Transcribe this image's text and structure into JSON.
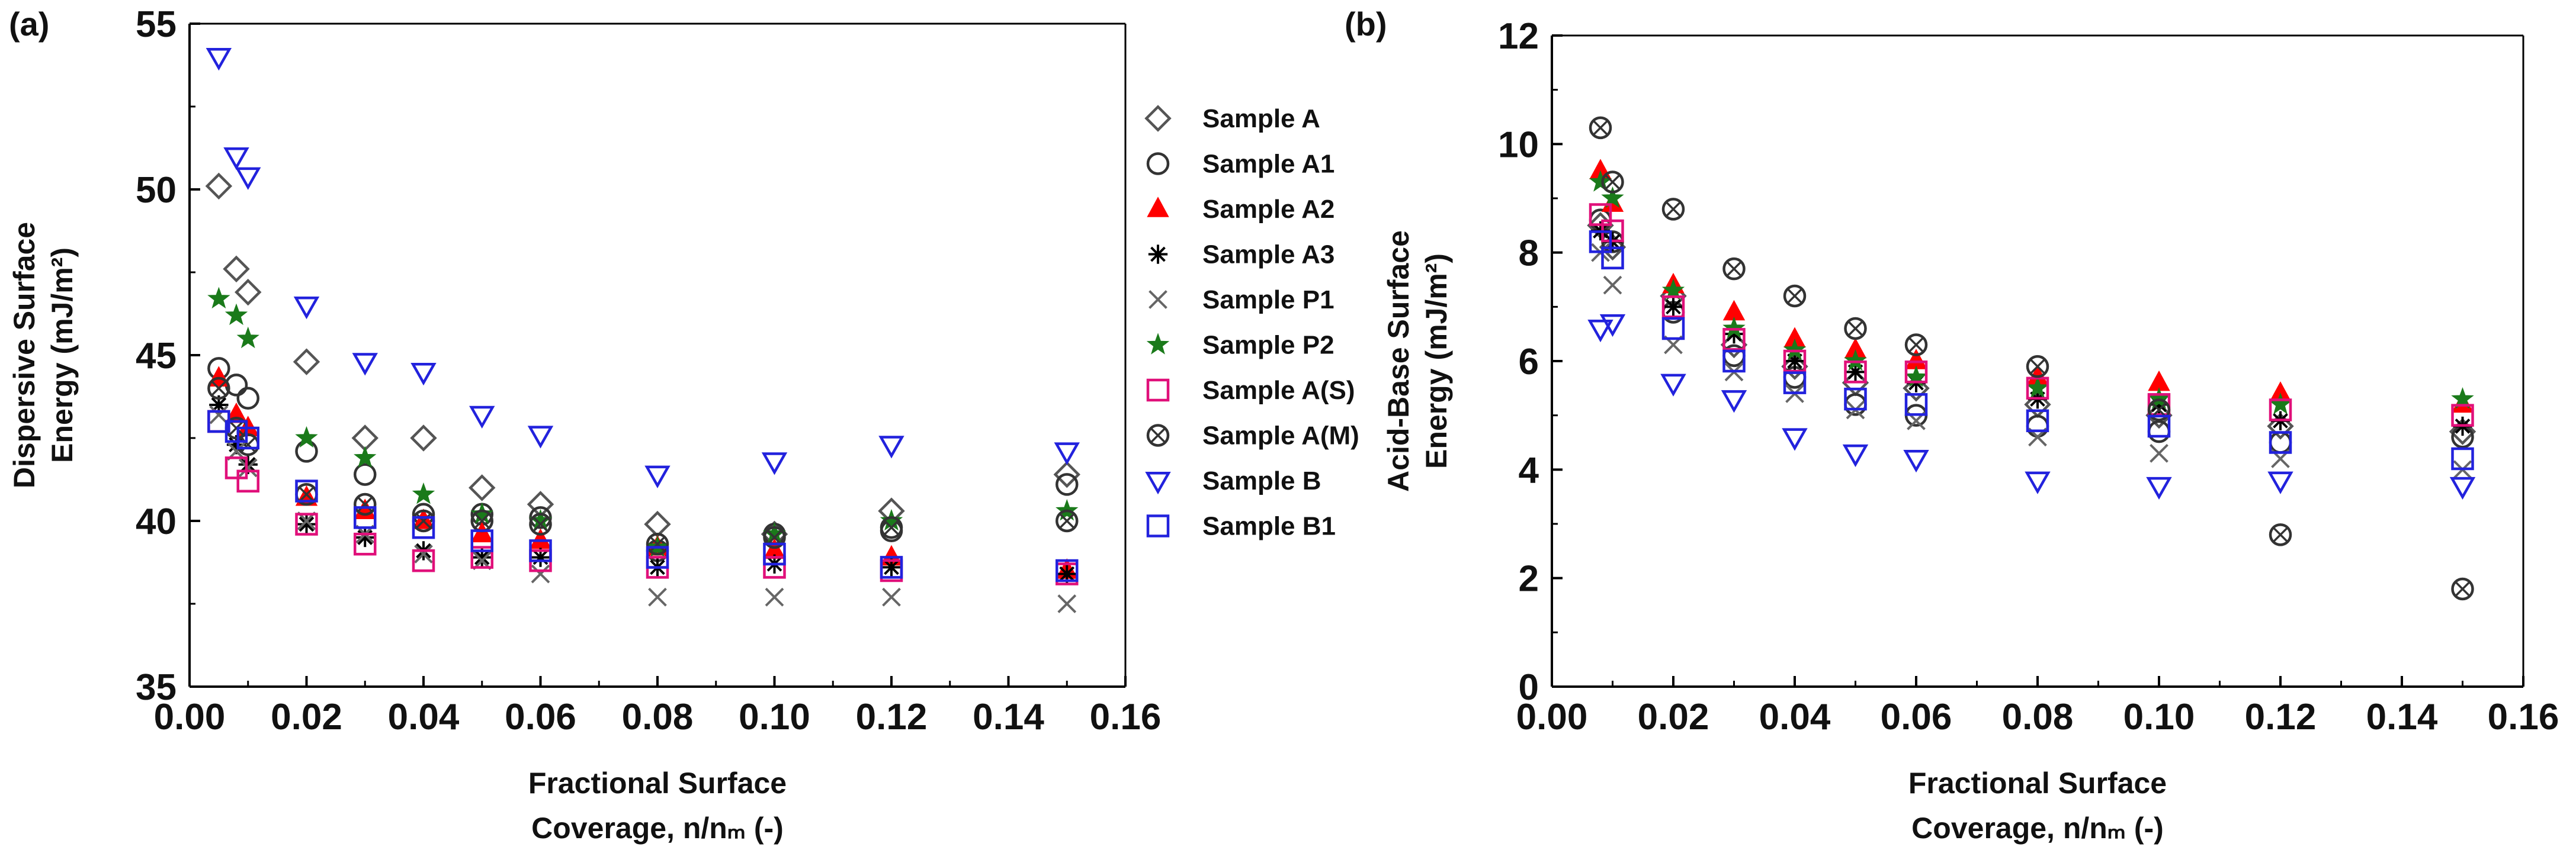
{
  "chart_data": [
    {
      "type": "scatter",
      "panel_label": "(a)",
      "xlabel": [
        "Fractional Surface",
        "Coverage, n/nₘ (-)"
      ],
      "ylabel": [
        "Dispersive Surface",
        "Energy (mJ/m²)"
      ],
      "xlim": [
        0.0,
        0.16
      ],
      "ylim": [
        35,
        55
      ],
      "x_ticks": [
        0.0,
        0.02,
        0.04,
        0.06,
        0.08,
        0.1,
        0.12,
        0.14,
        0.16
      ],
      "x_tick_labels": [
        "0.00",
        "0.02",
        "0.04",
        "0.06",
        "0.08",
        "0.10",
        "0.12",
        "0.14",
        "0.16"
      ],
      "y_ticks": [
        35,
        40,
        45,
        50,
        55
      ],
      "y_tick_labels": [
        "35",
        "40",
        "45",
        "50",
        "55"
      ],
      "legend": "right",
      "series": [
        {
          "name": "Sample A",
          "marker": "diamond",
          "color": "#555555",
          "x": [
            0.005,
            0.008,
            0.01,
            0.02,
            0.03,
            0.04,
            0.05,
            0.06,
            0.08,
            0.1,
            0.12,
            0.15
          ],
          "y": [
            50.1,
            47.6,
            46.9,
            44.8,
            42.5,
            42.5,
            41.0,
            40.5,
            39.9,
            39.6,
            40.3,
            41.4
          ]
        },
        {
          "name": "Sample A1",
          "marker": "circle",
          "color": "#333333",
          "x": [
            0.005,
            0.008,
            0.01,
            0.02,
            0.03,
            0.04,
            0.05,
            0.06,
            0.08,
            0.1,
            0.12,
            0.15
          ],
          "y": [
            44.6,
            44.1,
            43.7,
            42.1,
            41.4,
            40.2,
            40.2,
            40.1,
            39.1,
            39.6,
            39.7,
            41.1
          ]
        },
        {
          "name": "Sample A2",
          "marker": "triangle-up",
          "color": "#ff0000",
          "x": [
            0.005,
            0.008,
            0.01,
            0.02,
            0.03,
            0.04,
            0.05,
            0.06,
            0.08,
            0.1,
            0.12,
            0.15
          ],
          "y": [
            44.3,
            43.2,
            42.8,
            40.7,
            40.3,
            40.0,
            39.6,
            39.4,
            39.2,
            39.1,
            38.9,
            38.5
          ]
        },
        {
          "name": "Sample A3",
          "marker": "asterisk",
          "color": "#000000",
          "x": [
            0.005,
            0.008,
            0.01,
            0.02,
            0.03,
            0.04,
            0.05,
            0.06,
            0.08,
            0.1,
            0.12,
            0.15
          ],
          "y": [
            43.5,
            42.3,
            41.7,
            39.9,
            39.5,
            39.1,
            38.9,
            38.9,
            38.6,
            38.7,
            38.6,
            38.4
          ]
        },
        {
          "name": "Sample P1",
          "marker": "x",
          "color": "#666666",
          "x": [
            0.005,
            0.008,
            0.01,
            0.02,
            0.03,
            0.04,
            0.05,
            0.06,
            0.08,
            0.1,
            0.12,
            0.15
          ],
          "y": [
            43.2,
            42.1,
            41.6,
            40.0,
            39.6,
            39.0,
            38.8,
            38.4,
            37.7,
            37.7,
            37.7,
            37.5
          ]
        },
        {
          "name": "Sample P2",
          "marker": "star",
          "color": "#1a7a1a",
          "x": [
            0.005,
            0.008,
            0.01,
            0.02,
            0.03,
            0.04,
            0.05,
            0.06,
            0.08,
            0.1,
            0.12,
            0.15
          ],
          "y": [
            46.7,
            46.2,
            45.5,
            42.5,
            41.9,
            40.8,
            40.2,
            40.0,
            39.2,
            39.6,
            40.0,
            40.3
          ]
        },
        {
          "name": "Sample A(S)",
          "marker": "square",
          "color": "#e0107a",
          "x": [
            0.005,
            0.008,
            0.01,
            0.02,
            0.03,
            0.04,
            0.05,
            0.06,
            0.08,
            0.1,
            0.12,
            0.15
          ],
          "y": [
            43.0,
            41.6,
            41.2,
            39.9,
            39.3,
            38.8,
            38.9,
            38.8,
            38.6,
            38.6,
            38.5,
            38.4
          ]
        },
        {
          "name": "Sample A(M)",
          "marker": "circle-x",
          "color": "#333333",
          "x": [
            0.005,
            0.008,
            0.01,
            0.02,
            0.03,
            0.04,
            0.05,
            0.06,
            0.08,
            0.1,
            0.12,
            0.15
          ],
          "y": [
            44.0,
            42.8,
            42.3,
            40.8,
            40.5,
            40.0,
            40.0,
            39.9,
            39.3,
            39.5,
            39.8,
            40.0
          ]
        },
        {
          "name": "Sample B",
          "marker": "triangle-down",
          "color": "#2222dd",
          "x": [
            0.005,
            0.008,
            0.01,
            0.02,
            0.03,
            0.04,
            0.05,
            0.06,
            0.08,
            0.1,
            0.12,
            0.15
          ],
          "y": [
            54.0,
            51.0,
            50.4,
            46.5,
            44.8,
            44.5,
            43.2,
            42.6,
            41.4,
            41.8,
            42.3,
            42.1
          ]
        },
        {
          "name": "Sample B1",
          "marker": "square",
          "color": "#2222dd",
          "x": [
            0.005,
            0.008,
            0.01,
            0.02,
            0.03,
            0.04,
            0.05,
            0.06,
            0.08,
            0.1,
            0.12,
            0.15
          ],
          "y": [
            43.0,
            42.7,
            42.5,
            40.9,
            40.1,
            39.8,
            39.4,
            39.1,
            38.9,
            39.0,
            38.6,
            38.5
          ]
        }
      ]
    },
    {
      "type": "scatter",
      "panel_label": "(b)",
      "xlabel": [
        "Fractional Surface",
        "Coverage, n/nₘ (-)"
      ],
      "ylabel": [
        "Acid-Base Surface",
        "Energy  (mJ/m²)"
      ],
      "xlim": [
        0.0,
        0.16
      ],
      "ylim": [
        0,
        12
      ],
      "x_ticks": [
        0.0,
        0.02,
        0.04,
        0.06,
        0.08,
        0.1,
        0.12,
        0.14,
        0.16
      ],
      "x_tick_labels": [
        "0.00",
        "0.02",
        "0.04",
        "0.06",
        "0.08",
        "0.10",
        "0.12",
        "0.14",
        "0.16"
      ],
      "y_ticks": [
        0,
        2,
        4,
        6,
        8,
        10,
        12
      ],
      "y_tick_labels": [
        "0",
        "2",
        "4",
        "6",
        "8",
        "10",
        "12"
      ],
      "series": [
        {
          "name": "Sample A",
          "marker": "diamond",
          "color": "#555555",
          "x": [
            0.008,
            0.01,
            0.02,
            0.03,
            0.04,
            0.05,
            0.06,
            0.08,
            0.1,
            0.12,
            0.15
          ],
          "y": [
            8.5,
            8.1,
            7.2,
            6.3,
            5.9,
            5.6,
            5.5,
            5.2,
            5.0,
            4.8,
            4.7
          ]
        },
        {
          "name": "Sample A1",
          "marker": "circle",
          "color": "#333333",
          "x": [
            0.008,
            0.01,
            0.02,
            0.03,
            0.04,
            0.05,
            0.06,
            0.08,
            0.1,
            0.12,
            0.15
          ],
          "y": [
            8.6,
            8.2,
            6.9,
            6.1,
            5.7,
            5.2,
            5.0,
            4.8,
            4.7,
            4.5,
            4.6
          ]
        },
        {
          "name": "Sample A2",
          "marker": "triangle-up",
          "color": "#ff0000",
          "x": [
            0.008,
            0.01,
            0.02,
            0.03,
            0.04,
            0.05,
            0.06,
            0.08,
            0.1,
            0.12,
            0.15
          ],
          "y": [
            9.5,
            8.9,
            7.4,
            6.9,
            6.4,
            6.2,
            6.0,
            5.7,
            5.6,
            5.4,
            5.2
          ]
        },
        {
          "name": "Sample A3",
          "marker": "asterisk",
          "color": "#000000",
          "x": [
            0.008,
            0.01,
            0.02,
            0.03,
            0.04,
            0.05,
            0.06,
            0.08,
            0.1,
            0.12,
            0.15
          ],
          "y": [
            8.4,
            8.2,
            7.0,
            6.5,
            6.0,
            5.8,
            5.6,
            5.3,
            5.2,
            4.9,
            4.8
          ]
        },
        {
          "name": "Sample P1",
          "marker": "x",
          "color": "#666666",
          "x": [
            0.008,
            0.01,
            0.02,
            0.03,
            0.04,
            0.05,
            0.06,
            0.08,
            0.1,
            0.12,
            0.15
          ],
          "y": [
            8.0,
            7.4,
            6.3,
            5.8,
            5.4,
            5.1,
            4.9,
            4.6,
            4.3,
            4.2,
            4.0
          ]
        },
        {
          "name": "Sample P2",
          "marker": "star",
          "color": "#1a7a1a",
          "x": [
            0.008,
            0.01,
            0.02,
            0.03,
            0.04,
            0.05,
            0.06,
            0.08,
            0.1,
            0.12,
            0.15
          ],
          "y": [
            9.3,
            9.0,
            7.3,
            6.6,
            6.2,
            6.0,
            5.7,
            5.5,
            5.3,
            5.2,
            5.3
          ]
        },
        {
          "name": "Sample A(S)",
          "marker": "square",
          "color": "#e0107a",
          "x": [
            0.008,
            0.01,
            0.02,
            0.03,
            0.04,
            0.05,
            0.06,
            0.08,
            0.1,
            0.12,
            0.15
          ],
          "y": [
            8.7,
            8.4,
            7.0,
            6.4,
            6.0,
            5.8,
            5.8,
            5.5,
            5.2,
            5.1,
            5.0
          ]
        },
        {
          "name": "Sample A(M)",
          "marker": "circle-x",
          "color": "#333333",
          "x": [
            0.008,
            0.01,
            0.02,
            0.03,
            0.04,
            0.05,
            0.06,
            0.08,
            0.1,
            0.12,
            0.15
          ],
          "y": [
            10.3,
            9.3,
            8.8,
            7.7,
            7.2,
            6.6,
            6.3,
            5.9,
            5.1,
            2.8,
            1.8
          ]
        },
        {
          "name": "Sample B",
          "marker": "triangle-down",
          "color": "#2222dd",
          "x": [
            0.008,
            0.01,
            0.02,
            0.03,
            0.04,
            0.05,
            0.06,
            0.08,
            0.1,
            0.12,
            0.15
          ],
          "y": [
            6.6,
            6.7,
            5.6,
            5.3,
            4.6,
            4.3,
            4.2,
            3.8,
            3.7,
            3.8,
            3.7
          ]
        },
        {
          "name": "Sample B1",
          "marker": "square",
          "color": "#2222dd",
          "x": [
            0.008,
            0.01,
            0.02,
            0.03,
            0.04,
            0.05,
            0.06,
            0.08,
            0.1,
            0.12,
            0.15
          ],
          "y": [
            8.2,
            7.9,
            6.6,
            6.0,
            5.6,
            5.3,
            5.2,
            4.9,
            4.8,
            4.5,
            4.2
          ]
        }
      ]
    }
  ]
}
